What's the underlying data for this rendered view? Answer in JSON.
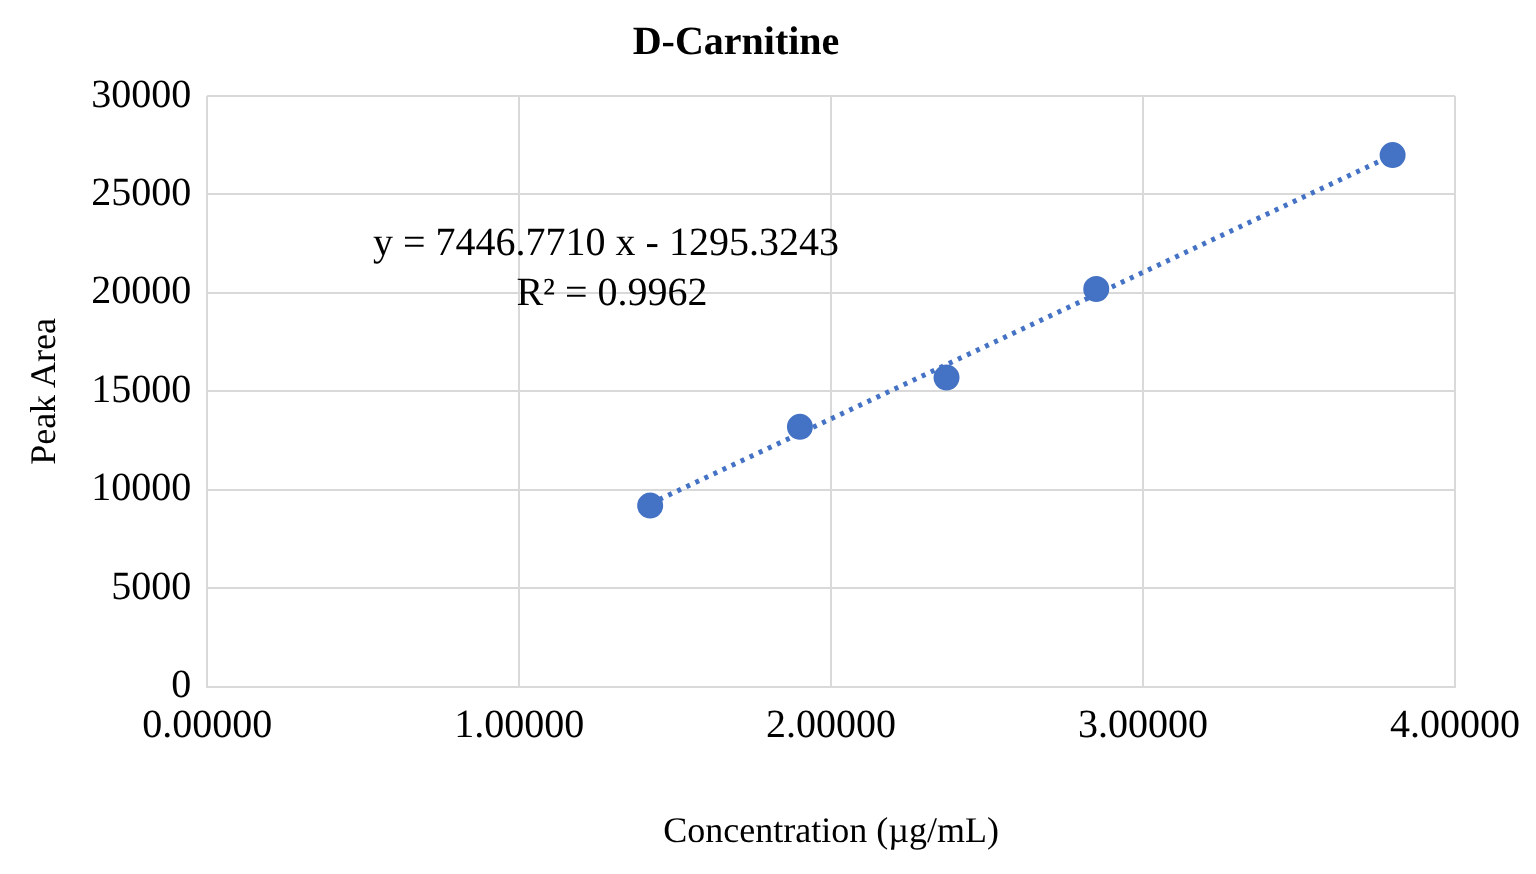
{
  "chart_data": {
    "type": "scatter",
    "title": "D-Carnitine",
    "xlabel": "Concentration (µg/mL)",
    "ylabel": "Peak Area",
    "xlim": [
      0,
      4
    ],
    "xticks": [
      {
        "value": 0,
        "label": "0.00000"
      },
      {
        "value": 1,
        "label": "1.00000"
      },
      {
        "value": 2,
        "label": "2.00000"
      },
      {
        "value": 3,
        "label": "3.00000"
      },
      {
        "value": 4,
        "label": "4.00000"
      }
    ],
    "ylim": [
      0,
      30000
    ],
    "yticks": [
      0,
      5000,
      10000,
      15000,
      20000,
      25000,
      30000
    ],
    "grid": true,
    "marker": "circle",
    "series": [
      {
        "color": "#4472c4",
        "x": [
          1.42,
          1.9,
          2.37,
          2.85,
          3.8
        ],
        "values": [
          9200,
          13200,
          15700,
          20200,
          27000
        ]
      },
      {
        "type": "line",
        "line_style": "dotted",
        "marker": "none",
        "color": "#4472c4",
        "x": [
          1.42,
          3.8
        ],
        "values": [
          9300,
          27000
        ]
      }
    ],
    "annotations": [
      "y = 7446.7710 x - 1295.3243",
      "R² = 0.9962"
    ]
  }
}
